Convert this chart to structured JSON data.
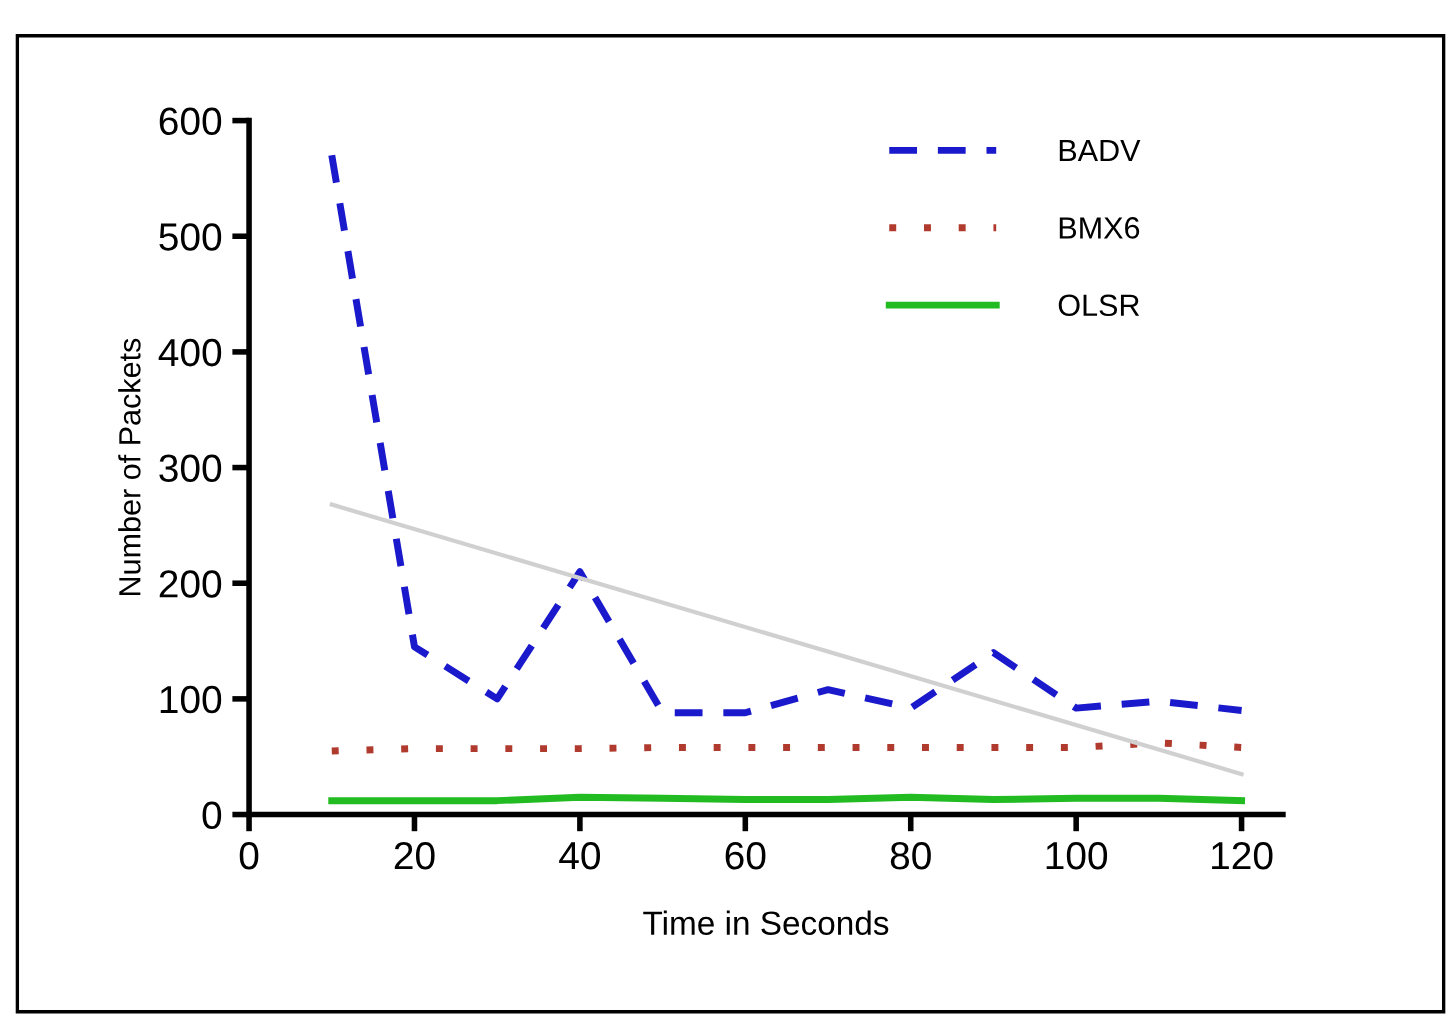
{
  "chart_data": {
    "type": "line",
    "xlabel": "Time in Seconds",
    "ylabel": "Number of Packets",
    "x": [
      10,
      20,
      30,
      40,
      50,
      60,
      70,
      80,
      90,
      100,
      110,
      120
    ],
    "series": [
      {
        "name": "BADV",
        "color": "#1a1acc",
        "line_style": "dashed",
        "values": [
          570,
          145,
          100,
          210,
          88,
          88,
          108,
          92,
          140,
          92,
          98,
          90
        ]
      },
      {
        "name": "BMX6",
        "color": "#b03a2e",
        "line_style": "dotted",
        "values": [
          55,
          57,
          57,
          57,
          58,
          58,
          58,
          58,
          58,
          58,
          62,
          58
        ]
      },
      {
        "name": "OLSR",
        "color": "#22bb22",
        "line_style": "solid",
        "values": [
          12,
          12,
          12,
          15,
          14,
          13,
          13,
          15,
          13,
          14,
          14,
          12
        ]
      },
      {
        "type": "line",
        "color": "#d0d0d0",
        "line_style": "solid",
        "x": [
          10,
          120
        ],
        "values": [
          268,
          35
        ]
      }
    ],
    "xlim": [
      0,
      125
    ],
    "ylim": [
      0,
      600
    ],
    "xticks": [
      0,
      20,
      40,
      60,
      80,
      100,
      120
    ],
    "yticks": [
      0,
      100,
      200,
      300,
      400,
      500,
      600
    ],
    "grid": false,
    "legend": "top right",
    "marker": "none"
  }
}
